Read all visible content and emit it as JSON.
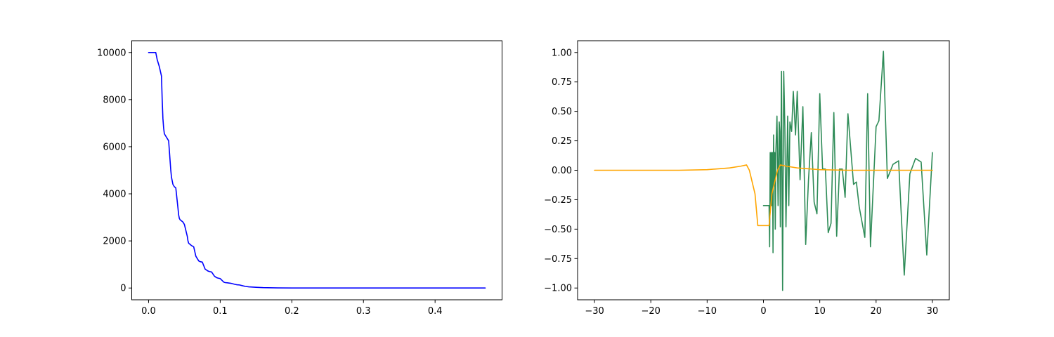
{
  "chart_data": [
    {
      "type": "line",
      "title": "",
      "xlabel": "",
      "ylabel": "",
      "xlim": [
        -0.0235,
        0.4935
      ],
      "ylim": [
        -500,
        10500
      ],
      "grid": false,
      "xticks": [
        0.0,
        0.1,
        0.2,
        0.3,
        0.4
      ],
      "xtick_labels": [
        "0.0",
        "0.1",
        "0.2",
        "0.3",
        "0.4"
      ],
      "yticks": [
        0,
        2000,
        4000,
        6000,
        8000,
        10000
      ],
      "ytick_labels": [
        "0",
        "2000",
        "4000",
        "6000",
        "8000",
        "10000"
      ],
      "series": [
        {
          "color": "#0000ff",
          "x": [
            0.0,
            0.01,
            0.012,
            0.015,
            0.018,
            0.019,
            0.02,
            0.021,
            0.022,
            0.024,
            0.026,
            0.028,
            0.031,
            0.032,
            0.033,
            0.034,
            0.036,
            0.038,
            0.041,
            0.042,
            0.043,
            0.044,
            0.046,
            0.048,
            0.05,
            0.054,
            0.055,
            0.056,
            0.058,
            0.06,
            0.063,
            0.066,
            0.068,
            0.069,
            0.07,
            0.072,
            0.075,
            0.079,
            0.081,
            0.082,
            0.083,
            0.085,
            0.088,
            0.092,
            0.094,
            0.095,
            0.097,
            0.1,
            0.105,
            0.107,
            0.11,
            0.115,
            0.12,
            0.123,
            0.127,
            0.132,
            0.135,
            0.14,
            0.15,
            0.16,
            0.18,
            0.2,
            0.25,
            0.3,
            0.35,
            0.4,
            0.47
          ],
          "y": [
            10000,
            10000,
            9700,
            9400,
            9000,
            8000,
            7200,
            6800,
            6550,
            6450,
            6350,
            6250,
            5000,
            4700,
            4550,
            4400,
            4300,
            4250,
            3400,
            3100,
            2950,
            2900,
            2850,
            2800,
            2700,
            2200,
            2000,
            1900,
            1850,
            1800,
            1750,
            1350,
            1250,
            1200,
            1150,
            1120,
            1100,
            800,
            760,
            740,
            720,
            700,
            680,
            500,
            460,
            440,
            420,
            400,
            250,
            230,
            220,
            200,
            160,
            140,
            130,
            90,
            70,
            50,
            30,
            15,
            5,
            2,
            0,
            0,
            0,
            0,
            0
          ]
        }
      ]
    },
    {
      "type": "line",
      "title": "",
      "xlabel": "",
      "ylabel": "",
      "xlim": [
        -33.0,
        33.0
      ],
      "ylim": [
        -1.1,
        1.1
      ],
      "grid": false,
      "xticks": [
        -30,
        -20,
        -10,
        0,
        10,
        20,
        30
      ],
      "xtick_labels": [
        "−30",
        "−20",
        "−10",
        "0",
        "10",
        "20",
        "30"
      ],
      "yticks": [
        -1.0,
        -0.75,
        -0.5,
        -0.25,
        0.0,
        0.25,
        0.5,
        0.75,
        1.0
      ],
      "ytick_labels": [
        "−1.00",
        "−0.75",
        "−0.50",
        "−0.25",
        "0.00",
        "0.25",
        "0.50",
        "0.75",
        "1.00"
      ],
      "series": [
        {
          "color": "#2e8b57",
          "x": [
            30.0,
            29.0,
            28.0,
            27.0,
            26.0,
            25.0,
            24.0,
            23.0,
            22.0,
            21.3,
            20.5,
            20.0,
            19.0,
            18.5,
            18.0,
            17.0,
            16.5,
            16.0,
            15.0,
            14.5,
            14.0,
            13.5,
            13.0,
            12.5,
            12.0,
            11.5,
            11.0,
            10.5,
            10.0,
            9.5,
            9.0,
            8.5,
            8.0,
            7.5,
            7.0,
            6.5,
            6.0,
            5.7,
            5.3,
            5.0,
            4.7,
            4.5,
            4.3,
            4.0,
            3.8,
            3.6,
            3.4,
            3.2,
            3.0,
            2.9,
            2.8,
            2.6,
            2.4,
            2.3,
            2.2,
            2.1,
            2.0,
            1.9,
            1.8,
            1.7,
            1.6,
            1.5,
            1.4,
            1.3,
            1.2,
            1.1,
            1.0,
            0.0
          ],
          "y": [
            0.15,
            -0.72,
            0.07,
            0.1,
            -0.03,
            -0.89,
            0.08,
            0.05,
            -0.07,
            1.01,
            0.42,
            0.37,
            -0.65,
            0.65,
            -0.57,
            -0.31,
            -0.1,
            -0.12,
            0.48,
            -0.23,
            0.01,
            0.01,
            -0.56,
            0.49,
            -0.45,
            -0.53,
            0.01,
            0.01,
            0.65,
            -0.37,
            -0.27,
            0.32,
            -0.08,
            -0.63,
            0.54,
            -0.08,
            0.67,
            0.3,
            0.67,
            0.33,
            0.41,
            -0.3,
            0.46,
            -0.48,
            0.37,
            0.84,
            -1.02,
            0.84,
            -0.48,
            0.33,
            0.41,
            -0.3,
            0.46,
            0.3,
            0.15,
            -0.5,
            0.15,
            -0.1,
            0.3,
            -0.7,
            0.15,
            -0.3,
            0.15,
            -0.3,
            0.15,
            -0.65,
            -0.3,
            -0.3
          ]
        },
        {
          "color": "#ffa500",
          "x": [
            -30.0,
            -20.0,
            -15.0,
            -10.0,
            -6.0,
            -4.0,
            -3.0,
            -2.5,
            -2.0,
            -1.5,
            -1.0,
            1.0,
            1.5,
            2.0,
            2.5,
            3.0,
            4.0,
            6.0,
            10.0,
            15.0,
            20.0,
            30.0
          ],
          "y": [
            0.0,
            0.0,
            0.0,
            0.005,
            0.02,
            0.035,
            0.045,
            0.0,
            -0.1,
            -0.2,
            -0.47,
            -0.47,
            -0.2,
            -0.1,
            0.0,
            0.045,
            0.035,
            0.02,
            0.005,
            0.0,
            0.0,
            0.0
          ]
        }
      ]
    }
  ]
}
